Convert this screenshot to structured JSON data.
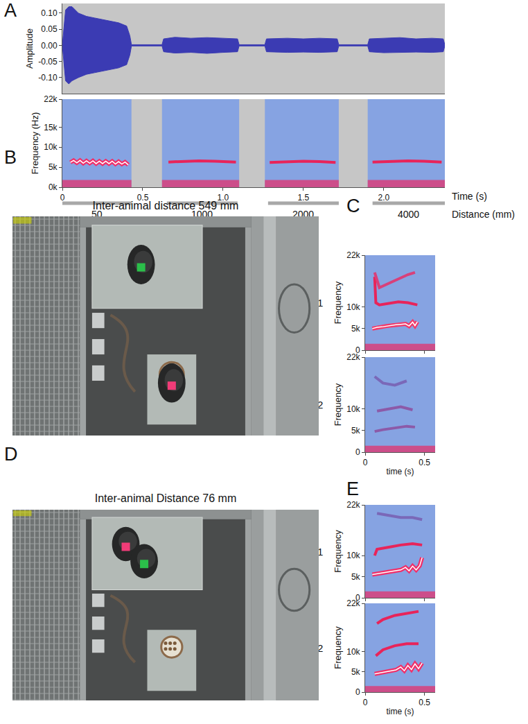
{
  "chart_data": [
    {
      "panel": "A",
      "type": "area",
      "y_label": "Amplitude",
      "color": "#3b3bb3",
      "tick_labels": "y",
      "x": [
        0,
        0.01,
        0.02,
        0.04,
        0.06,
        0.1,
        0.15,
        0.2,
        0.25,
        0.3,
        0.35,
        0.4,
        0.42,
        0.43,
        0.62,
        0.63,
        0.7,
        0.8,
        0.9,
        1.0,
        1.09,
        1.1,
        1.26,
        1.27,
        1.4,
        1.5,
        1.6,
        1.71,
        1.72,
        1.9,
        1.91,
        2.0,
        2.1,
        2.2,
        2.3,
        2.37,
        2.38
      ],
      "values": [
        0.002,
        0.05,
        0.11,
        0.12,
        0.12,
        0.1,
        0.09,
        0.085,
        0.08,
        0.075,
        0.07,
        0.06,
        0.03,
        0.002,
        0.002,
        0.02,
        0.025,
        0.022,
        0.024,
        0.022,
        0.02,
        0.002,
        0.002,
        0.02,
        0.022,
        0.02,
        0.022,
        0.02,
        0.002,
        0.002,
        0.02,
        0.022,
        0.024,
        0.02,
        0.022,
        0.02,
        0.002
      ],
      "lower_values": [
        -0.002,
        -0.05,
        -0.11,
        -0.12,
        -0.11,
        -0.1,
        -0.09,
        -0.085,
        -0.08,
        -0.075,
        -0.07,
        -0.06,
        -0.03,
        -0.002,
        -0.002,
        -0.02,
        -0.024,
        -0.022,
        -0.025,
        -0.022,
        -0.02,
        -0.002,
        -0.002,
        -0.02,
        -0.022,
        -0.021,
        -0.022,
        -0.02,
        -0.002,
        -0.002,
        -0.02,
        -0.023,
        -0.022,
        -0.021,
        -0.022,
        -0.02,
        -0.002
      ],
      "xlim": [
        0,
        2.38
      ],
      "ylim": [
        -0.15,
        0.13
      ],
      "yticks": [
        {
          "value": -0.1,
          "label": "-0.10"
        },
        {
          "value": -0.05,
          "label": "-0.05"
        },
        {
          "value": 0,
          "label": "0.00"
        },
        {
          "value": 0.05,
          "label": "0.05"
        },
        {
          "value": 0.1,
          "label": "0.10"
        }
      ]
    },
    {
      "type": "spectrogram",
      "y_label": "Frequency (Hz)",
      "x_label": "Time (s)",
      "xlim": [
        0,
        2.38
      ],
      "xticks": [
        0,
        0.5,
        {
          "value": 1,
          "label": "1.0"
        },
        1.5,
        {
          "value": 2,
          "label": "2.0"
        }
      ],
      "ylim": [
        0,
        22000
      ],
      "yticks": [
        {
          "value": 0,
          "label": "0k"
        },
        {
          "value": 5000,
          "label": "5k"
        },
        {
          "value": 10000,
          "label": "10k"
        },
        {
          "value": 15000,
          "label": "15k"
        },
        {
          "value": 22000,
          "label": "22k"
        }
      ],
      "bursts": [
        [
          0,
          0.43
        ],
        [
          0.62,
          1.1
        ],
        [
          1.26,
          1.72
        ],
        [
          1.9,
          2.38
        ]
      ],
      "noise_band": [
        0,
        1800
      ],
      "series": [
        {
          "x": [
            0.05,
            0.07,
            0.09,
            0.11,
            0.13,
            0.15,
            0.17,
            0.19,
            0.21,
            0.23,
            0.25,
            0.27,
            0.29,
            0.31,
            0.33,
            0.35,
            0.37,
            0.39,
            0.41
          ],
          "values": [
            6200,
            6700,
            6100,
            6700,
            6000,
            6600,
            6000,
            6600,
            5900,
            6500,
            5900,
            6500,
            5900,
            6500,
            5800,
            6400,
            5800,
            6300,
            5600
          ],
          "color": "#f0306a",
          "line_style": "highlight"
        },
        {
          "x": [
            0.66,
            0.75,
            0.85,
            0.95,
            1.05,
            1.08
          ],
          "values": [
            6300,
            6500,
            6600,
            6500,
            6400,
            6300
          ],
          "color": "#e8245a"
        },
        {
          "x": [
            1.29,
            1.4,
            1.5,
            1.6,
            1.7
          ],
          "values": [
            6200,
            6400,
            6500,
            6400,
            6200
          ],
          "color": "#e8245a"
        },
        {
          "x": [
            1.93,
            2.05,
            2.15,
            2.25,
            2.36
          ],
          "values": [
            6300,
            6500,
            6600,
            6500,
            6300
          ],
          "color": "#e8245a"
        }
      ],
      "distance": {
        "label": "Distance (mm)",
        "segments": [
          {
            "start": 0,
            "end": 0.43,
            "label": "50"
          },
          {
            "start": 0.65,
            "end": 1.09,
            "label": "1000"
          },
          {
            "start": 1.28,
            "end": 1.72,
            "label": "2000"
          },
          {
            "start": 1.93,
            "end": 2.38,
            "label": "4000"
          }
        ]
      }
    },
    {
      "panel": "C",
      "type": "spectrogram",
      "row_label": "Animal 1",
      "y_label": "Frequency",
      "tick_labels": "y",
      "xlim": [
        0,
        0.59
      ],
      "xticks": [
        0,
        0.5
      ],
      "ylim": [
        0,
        22000
      ],
      "yticks": [
        0,
        {
          "value": 5000,
          "label": "5k"
        },
        {
          "value": 10000,
          "label": "10k"
        },
        {
          "value": 22000,
          "label": "22k"
        }
      ],
      "bursts": [
        [
          0,
          0.59
        ]
      ],
      "noise_band": [
        0,
        1500
      ],
      "series": [
        {
          "x": [
            0.06,
            0.1,
            0.14,
            0.18,
            0.22,
            0.26,
            0.3,
            0.34,
            0.37,
            0.4,
            0.42,
            0.44
          ],
          "values": [
            5000,
            5300,
            5400,
            5600,
            5700,
            5900,
            6000,
            6100,
            5600,
            6500,
            5700,
            6600
          ],
          "color": "#f23a6a",
          "line_style": "highlight"
        },
        {
          "x": [
            0.08,
            0.09,
            0.12,
            0.2,
            0.28,
            0.36,
            0.44
          ],
          "values": [
            17000,
            11000,
            10500,
            10800,
            11200,
            11000,
            10500
          ],
          "color": "#e8245a"
        },
        {
          "x": [
            0.08,
            0.12,
            0.2,
            0.28,
            0.36,
            0.42
          ],
          "values": [
            18000,
            14500,
            15500,
            16500,
            17500,
            18000
          ],
          "color": "#d8407a"
        }
      ]
    },
    {
      "type": "spectrogram",
      "row_label": "Animal 2",
      "y_label": "Frequency",
      "x_label": "time (s)",
      "xlim": [
        0,
        0.59
      ],
      "xticks": [
        0,
        0.5
      ],
      "ylim": [
        0,
        22000
      ],
      "yticks": [
        0,
        {
          "value": 5000,
          "label": "5k"
        },
        {
          "value": 10000,
          "label": "10k"
        },
        {
          "value": 22000,
          "label": "22k"
        }
      ],
      "bursts": [
        [
          0,
          0.59
        ]
      ],
      "noise_band": [
        0,
        1500
      ],
      "series": [
        {
          "x": [
            0.08,
            0.15,
            0.25,
            0.35,
            0.42
          ],
          "values": [
            4800,
            5200,
            5600,
            6000,
            5800
          ],
          "color": "#8c5aa8"
        },
        {
          "x": [
            0.1,
            0.2,
            0.3,
            0.4
          ],
          "values": [
            9500,
            10000,
            10500,
            9800
          ],
          "color": "#8c5aa8"
        },
        {
          "x": [
            0.08,
            0.15,
            0.25,
            0.35
          ],
          "values": [
            17500,
            16000,
            15500,
            16500
          ],
          "color": "#7a68b8"
        }
      ]
    },
    {
      "panel": "E",
      "type": "spectrogram",
      "row_label": "Animal 1",
      "y_label": "Frequency",
      "tick_labels": "y",
      "xlim": [
        0,
        0.59
      ],
      "xticks": [
        0,
        0.5
      ],
      "ylim": [
        0,
        22000
      ],
      "yticks": [
        0,
        {
          "value": 5000,
          "label": "5k"
        },
        {
          "value": 10000,
          "label": "10k"
        },
        {
          "value": 22000,
          "label": "22k"
        }
      ],
      "bursts": [
        [
          0,
          0.59
        ]
      ],
      "noise_band": [
        0,
        1500
      ],
      "series": [
        {
          "x": [
            0.06,
            0.12,
            0.18,
            0.24,
            0.3,
            0.34,
            0.37,
            0.4,
            0.43,
            0.46,
            0.48
          ],
          "values": [
            5500,
            5800,
            6000,
            6300,
            6600,
            7200,
            6400,
            7500,
            6600,
            7600,
            9500
          ],
          "color": "#f0306a",
          "line_style": "highlight"
        },
        {
          "x": [
            0.08,
            0.1,
            0.2,
            0.3,
            0.4,
            0.48
          ],
          "values": [
            10000,
            11500,
            12000,
            12500,
            12800,
            12500
          ],
          "color": "#e8245a"
        },
        {
          "x": [
            0.1,
            0.2,
            0.3,
            0.4,
            0.48
          ],
          "values": [
            20000,
            19500,
            19000,
            19000,
            18500
          ],
          "color": "#7a68b8"
        }
      ]
    },
    {
      "type": "spectrogram",
      "row_label": "Animal 2",
      "y_label": "Frequency",
      "x_label": "time (s)",
      "xlim": [
        0,
        0.59
      ],
      "xticks": [
        0,
        0.5
      ],
      "ylim": [
        0,
        22000
      ],
      "yticks": [
        0,
        {
          "value": 5000,
          "label": "5k"
        },
        {
          "value": 10000,
          "label": "10k"
        },
        {
          "value": 22000,
          "label": "22k"
        }
      ],
      "bursts": [
        [
          0,
          0.59
        ]
      ],
      "noise_band": [
        0,
        1500
      ],
      "series": [
        {
          "x": [
            0.08,
            0.14,
            0.2,
            0.26,
            0.3,
            0.33,
            0.36,
            0.39,
            0.42,
            0.45,
            0.48
          ],
          "values": [
            4500,
            4800,
            5200,
            5500,
            6200,
            5300,
            6600,
            5600,
            7000,
            5800,
            7200
          ],
          "color": "#f0306a",
          "line_style": "highlight"
        },
        {
          "x": [
            0.09,
            0.15,
            0.25,
            0.35,
            0.45
          ],
          "values": [
            9000,
            10500,
            11500,
            12000,
            12000
          ],
          "color": "#e8245a"
        },
        {
          "x": [
            0.1,
            0.15,
            0.25,
            0.35,
            0.45
          ],
          "values": [
            17000,
            18000,
            19000,
            19500,
            20000
          ],
          "color": "#e8245a"
        }
      ]
    }
  ],
  "photos": [
    {
      "panel": "B",
      "title": "Inter-animal distance 549 mm"
    },
    {
      "panel": "D",
      "title": "Inter-animal Distance 76 mm"
    }
  ]
}
